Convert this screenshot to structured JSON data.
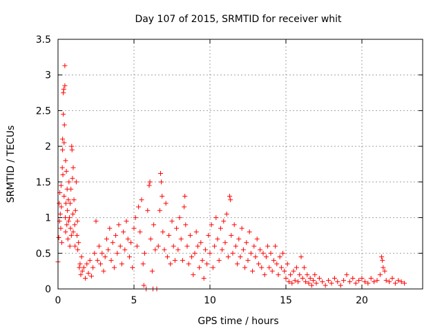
{
  "chart_data": {
    "type": "scatter",
    "title": "Day 107 of 2015, SRMTID for receiver whit",
    "xlabel": "GPS time / hours",
    "ylabel": "SRMTID / TECUs",
    "xlim": [
      0,
      24
    ],
    "ylim": [
      0,
      3.5
    ],
    "xticks": [
      0,
      5,
      10,
      15,
      20
    ],
    "xtick_labels": [
      "0",
      "5",
      "10",
      "15",
      "20"
    ],
    "yticks": [
      0,
      0.5,
      1,
      1.5,
      2,
      2.5,
      3,
      3.5
    ],
    "ytick_labels": [
      "0",
      "0.5",
      "1",
      "1.5",
      "2",
      "2.5",
      "3",
      "3.5"
    ],
    "grid": true,
    "marker": "+",
    "color": "#ff0000",
    "series": [
      {
        "name": "SRMTID",
        "points": [
          [
            0.0,
            0.38
          ],
          [
            0.05,
            0.72
          ],
          [
            0.08,
            1.2
          ],
          [
            0.1,
            0.95
          ],
          [
            0.12,
            1.35
          ],
          [
            0.15,
            1.05
          ],
          [
            0.18,
            0.85
          ],
          [
            0.2,
            1.45
          ],
          [
            0.22,
            1.15
          ],
          [
            0.25,
            0.65
          ],
          [
            0.28,
            1.7
          ],
          [
            0.3,
            1.95
          ],
          [
            0.3,
            2.1
          ],
          [
            0.32,
            1.6
          ],
          [
            0.35,
            2.45
          ],
          [
            0.35,
            2.75
          ],
          [
            0.38,
            2.8
          ],
          [
            0.4,
            2.05
          ],
          [
            0.4,
            1.3
          ],
          [
            0.42,
            2.3
          ],
          [
            0.45,
            3.13
          ],
          [
            0.45,
            2.85
          ],
          [
            0.48,
            1.0
          ],
          [
            0.5,
            1.8
          ],
          [
            0.5,
            0.8
          ],
          [
            0.52,
            1.2
          ],
          [
            0.55,
            1.65
          ],
          [
            0.58,
            0.9
          ],
          [
            0.6,
            1.4
          ],
          [
            0.62,
            1.1
          ],
          [
            0.65,
            0.7
          ],
          [
            0.68,
            1.25
          ],
          [
            0.7,
            0.95
          ],
          [
            0.72,
            1.5
          ],
          [
            0.75,
            1.0
          ],
          [
            0.78,
            0.6
          ],
          [
            0.8,
            1.2
          ],
          [
            0.82,
            0.85
          ],
          [
            0.85,
            1.4
          ],
          [
            0.88,
            0.75
          ],
          [
            0.9,
            2.0
          ],
          [
            0.92,
            1.95
          ],
          [
            0.95,
            1.55
          ],
          [
            0.98,
            1.05
          ],
          [
            1.0,
            0.8
          ],
          [
            1.0,
            1.7
          ],
          [
            1.05,
            1.25
          ],
          [
            1.1,
            0.9
          ],
          [
            1.12,
            0.6
          ],
          [
            1.15,
            1.1
          ],
          [
            1.2,
            1.5
          ],
          [
            1.25,
            0.75
          ],
          [
            1.28,
            0.95
          ],
          [
            1.3,
            0.55
          ],
          [
            1.35,
            0.65
          ],
          [
            1.4,
            0.3
          ],
          [
            1.45,
            0.35
          ],
          [
            1.5,
            0.2
          ],
          [
            1.55,
            0.45
          ],
          [
            1.6,
            0.25
          ],
          [
            1.7,
            0.3
          ],
          [
            1.8,
            0.15
          ],
          [
            1.9,
            0.35
          ],
          [
            2.0,
            0.22
          ],
          [
            2.1,
            0.4
          ],
          [
            2.2,
            0.18
          ],
          [
            2.3,
            0.3
          ],
          [
            2.4,
            0.5
          ],
          [
            2.5,
            0.95
          ],
          [
            2.6,
            0.4
          ],
          [
            2.7,
            0.6
          ],
          [
            2.8,
            0.35
          ],
          [
            2.9,
            0.5
          ],
          [
            3.0,
            0.25
          ],
          [
            3.1,
            0.45
          ],
          [
            3.2,
            0.7
          ],
          [
            3.3,
            0.55
          ],
          [
            3.4,
            0.85
          ],
          [
            3.5,
            0.4
          ],
          [
            3.6,
            0.65
          ],
          [
            3.7,
            0.3
          ],
          [
            3.8,
            0.75
          ],
          [
            3.9,
            0.5
          ],
          [
            4.0,
            0.9
          ],
          [
            4.1,
            0.6
          ],
          [
            4.2,
            0.35
          ],
          [
            4.3,
            0.8
          ],
          [
            4.4,
            0.55
          ],
          [
            4.5,
            0.95
          ],
          [
            4.6,
            0.7
          ],
          [
            4.7,
            0.45
          ],
          [
            4.8,
            0.65
          ],
          [
            4.9,
            0.3
          ],
          [
            5.0,
            0.85
          ],
          [
            5.1,
            1.0
          ],
          [
            5.2,
            0.6
          ],
          [
            5.3,
            1.15
          ],
          [
            5.4,
            0.8
          ],
          [
            5.5,
            1.25
          ],
          [
            5.6,
            0.35
          ],
          [
            5.65,
            0.05
          ],
          [
            5.7,
            0.5
          ],
          [
            5.8,
            0.0
          ],
          [
            5.9,
            1.1
          ],
          [
            6.0,
            1.45
          ],
          [
            6.05,
            1.5
          ],
          [
            6.1,
            0.7
          ],
          [
            6.2,
            0.25
          ],
          [
            6.25,
            0.0
          ],
          [
            6.3,
            0.9
          ],
          [
            6.4,
            0.55
          ],
          [
            6.5,
            0.0
          ],
          [
            6.6,
            0.6
          ],
          [
            6.7,
            1.1
          ],
          [
            6.75,
            1.62
          ],
          [
            6.8,
            1.5
          ],
          [
            6.85,
            1.3
          ],
          [
            6.9,
            0.8
          ],
          [
            7.0,
            0.55
          ],
          [
            7.1,
            1.2
          ],
          [
            7.2,
            0.45
          ],
          [
            7.3,
            0.75
          ],
          [
            7.4,
            0.35
          ],
          [
            7.5,
            0.95
          ],
          [
            7.6,
            0.6
          ],
          [
            7.7,
            0.4
          ],
          [
            7.8,
            0.85
          ],
          [
            7.9,
            0.55
          ],
          [
            8.0,
            1.0
          ],
          [
            8.1,
            0.7
          ],
          [
            8.2,
            0.4
          ],
          [
            8.3,
            1.15
          ],
          [
            8.35,
            1.3
          ],
          [
            8.4,
            0.9
          ],
          [
            8.5,
            0.6
          ],
          [
            8.6,
            0.35
          ],
          [
            8.7,
            0.75
          ],
          [
            8.8,
            0.45
          ],
          [
            8.9,
            0.2
          ],
          [
            9.0,
            0.5
          ],
          [
            9.1,
            0.8
          ],
          [
            9.2,
            0.6
          ],
          [
            9.3,
            0.3
          ],
          [
            9.4,
            0.65
          ],
          [
            9.5,
            0.4
          ],
          [
            9.6,
            0.15
          ],
          [
            9.7,
            0.55
          ],
          [
            9.8,
            0.35
          ],
          [
            9.9,
            0.75
          ],
          [
            10.0,
            0.5
          ],
          [
            10.1,
            0.9
          ],
          [
            10.2,
            0.3
          ],
          [
            10.3,
            0.6
          ],
          [
            10.4,
            1.0
          ],
          [
            10.5,
            0.7
          ],
          [
            10.6,
            0.4
          ],
          [
            10.7,
            0.85
          ],
          [
            10.8,
            0.55
          ],
          [
            10.9,
            0.95
          ],
          [
            11.0,
            0.65
          ],
          [
            11.1,
            1.05
          ],
          [
            11.2,
            0.45
          ],
          [
            11.3,
            1.3
          ],
          [
            11.35,
            1.25
          ],
          [
            11.4,
            0.75
          ],
          [
            11.5,
            0.5
          ],
          [
            11.6,
            0.9
          ],
          [
            11.7,
            0.6
          ],
          [
            11.8,
            0.35
          ],
          [
            11.9,
            0.7
          ],
          [
            12.0,
            0.45
          ],
          [
            12.1,
            0.85
          ],
          [
            12.2,
            0.55
          ],
          [
            12.3,
            0.3
          ],
          [
            12.4,
            0.65
          ],
          [
            12.5,
            0.4
          ],
          [
            12.6,
            0.8
          ],
          [
            12.7,
            0.5
          ],
          [
            12.8,
            0.25
          ],
          [
            12.9,
            0.6
          ],
          [
            13.0,
            0.45
          ],
          [
            13.1,
            0.7
          ],
          [
            13.2,
            0.35
          ],
          [
            13.3,
            0.55
          ],
          [
            13.4,
            0.3
          ],
          [
            13.5,
            0.5
          ],
          [
            13.6,
            0.2
          ],
          [
            13.7,
            0.45
          ],
          [
            13.8,
            0.6
          ],
          [
            13.9,
            0.3
          ],
          [
            14.0,
            0.5
          ],
          [
            14.1,
            0.25
          ],
          [
            14.2,
            0.4
          ],
          [
            14.3,
            0.6
          ],
          [
            14.4,
            0.35
          ],
          [
            14.5,
            0.2
          ],
          [
            14.6,
            0.45
          ],
          [
            14.7,
            0.3
          ],
          [
            14.8,
            0.5
          ],
          [
            14.9,
            0.25
          ],
          [
            15.0,
            0.15
          ],
          [
            15.1,
            0.35
          ],
          [
            15.2,
            0.1
          ],
          [
            15.3,
            0.2
          ],
          [
            15.4,
            0.08
          ],
          [
            15.5,
            0.25
          ],
          [
            15.6,
            0.12
          ],
          [
            15.7,
            0.3
          ],
          [
            15.8,
            0.1
          ],
          [
            15.9,
            0.2
          ],
          [
            16.0,
            0.45
          ],
          [
            16.1,
            0.15
          ],
          [
            16.2,
            0.3
          ],
          [
            16.3,
            0.1
          ],
          [
            16.4,
            0.2
          ],
          [
            16.5,
            0.08
          ],
          [
            16.6,
            0.15
          ],
          [
            16.7,
            0.05
          ],
          [
            16.8,
            0.12
          ],
          [
            16.9,
            0.2
          ],
          [
            17.0,
            0.08
          ],
          [
            17.2,
            0.15
          ],
          [
            17.4,
            0.1
          ],
          [
            17.6,
            0.05
          ],
          [
            17.8,
            0.12
          ],
          [
            18.0,
            0.08
          ],
          [
            18.2,
            0.15
          ],
          [
            18.4,
            0.1
          ],
          [
            18.6,
            0.05
          ],
          [
            18.8,
            0.12
          ],
          [
            19.0,
            0.2
          ],
          [
            19.2,
            0.1
          ],
          [
            19.4,
            0.15
          ],
          [
            19.6,
            0.08
          ],
          [
            19.8,
            0.12
          ],
          [
            20.0,
            0.15
          ],
          [
            20.2,
            0.1
          ],
          [
            20.4,
            0.08
          ],
          [
            20.6,
            0.15
          ],
          [
            20.8,
            0.1
          ],
          [
            21.0,
            0.12
          ],
          [
            21.2,
            0.2
          ],
          [
            21.3,
            0.45
          ],
          [
            21.35,
            0.4
          ],
          [
            21.4,
            0.3
          ],
          [
            21.5,
            0.25
          ],
          [
            21.6,
            0.12
          ],
          [
            21.8,
            0.1
          ],
          [
            22.0,
            0.15
          ],
          [
            22.2,
            0.08
          ],
          [
            22.4,
            0.12
          ],
          [
            22.6,
            0.1
          ],
          [
            22.8,
            0.08
          ]
        ]
      }
    ]
  }
}
